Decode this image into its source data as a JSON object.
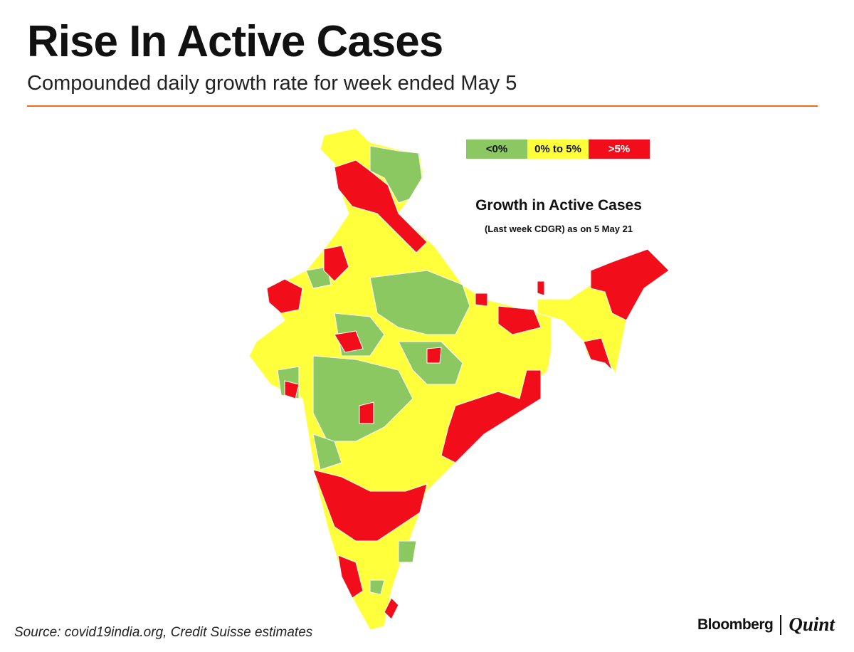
{
  "header": {
    "title": "Rise In Active Cases",
    "subtitle": "Compounded daily growth rate for week ended May 5"
  },
  "map": {
    "title": "Growth in Active Cases",
    "subtitle": "(Last week CDGR) as on 5 May 21",
    "legend": [
      {
        "label": "<0%",
        "color": "#8cc862",
        "text_color": "#111111"
      },
      {
        "label": "0% to 5%",
        "color": "#ffff3c",
        "text_color": "#111111"
      },
      {
        "label": ">5%",
        "color": "#f20d1a",
        "text_color": "#ffffff"
      }
    ]
  },
  "footer": {
    "source": "Source: covid19india.org, Credit Suisse estimates",
    "brand_left": "Bloomberg",
    "brand_right": "Quint"
  },
  "colors": {
    "accent_rule": "#f26a1b"
  }
}
